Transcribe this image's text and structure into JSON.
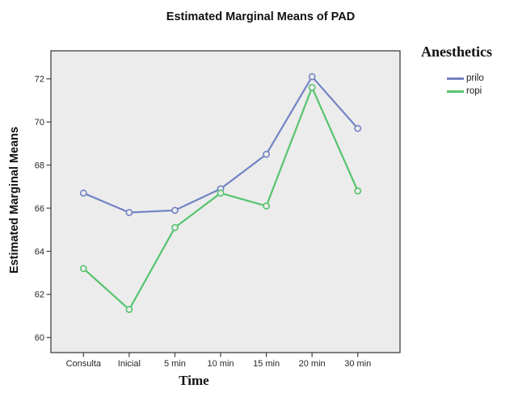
{
  "chart_data": {
    "type": "line",
    "title": "Estimated Marginal Means of PAD",
    "xlabel": "Time",
    "ylabel": "Estimated Marginal Means",
    "legend": {
      "title": "Anesthetics",
      "position": "right"
    },
    "categories": [
      "Consulta",
      "Inicial",
      "5 min",
      "10 min",
      "15 min",
      "20 min",
      "30 min"
    ],
    "series": [
      {
        "name": "prilo",
        "color": "#7283C3",
        "values": [
          66.7,
          65.8,
          65.9,
          66.9,
          68.5,
          72.1,
          69.7
        ]
      },
      {
        "name": "ropi",
        "color": "#55C46E",
        "values": [
          63.2,
          61.3,
          65.1,
          66.7,
          66.1,
          71.6,
          66.8
        ]
      }
    ],
    "yticks": [
      60,
      62,
      64,
      66,
      68,
      70,
      72
    ],
    "ylim": [
      59.3,
      73.3
    ],
    "grid": false,
    "marker": "open-circle",
    "colors": {
      "plot_background": "#ECECEC",
      "frame": "#404040",
      "tick_label": "#262626"
    }
  }
}
